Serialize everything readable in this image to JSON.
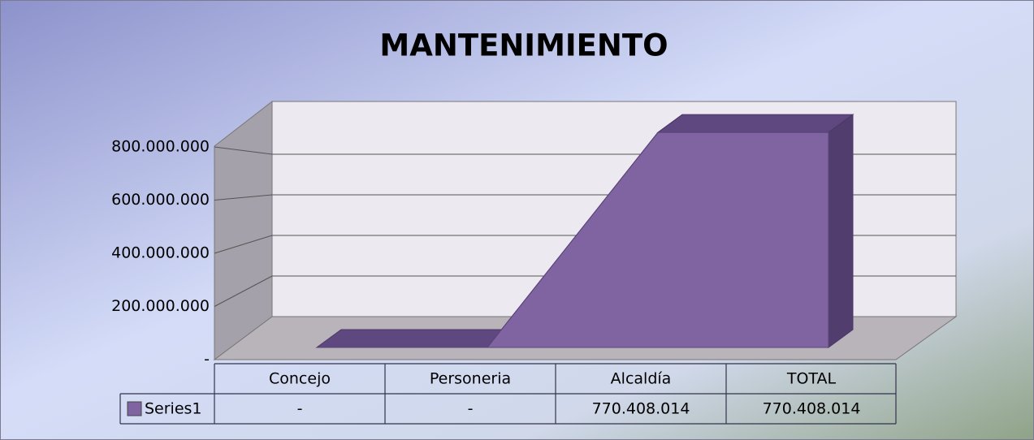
{
  "chart_data": {
    "type": "area3d",
    "title": "MANTENIMIENTO",
    "categories": [
      "Concejo",
      "Personeria",
      "Alcaldía",
      "TOTAL"
    ],
    "series": [
      {
        "name": "Series1",
        "color": "#8064a2",
        "values": [
          0,
          0,
          770408014,
          770408014
        ],
        "value_labels": [
          "-",
          "-",
          "770.408.014",
          "770.408.014"
        ]
      }
    ],
    "ylim": [
      0,
      800000000
    ],
    "yticks": [
      {
        "value": 0,
        "label": "-"
      },
      {
        "value": 200000000,
        "label": "200.000.000"
      },
      {
        "value": 400000000,
        "label": "400.000.000"
      },
      {
        "value": 600000000,
        "label": "600.000.000"
      },
      {
        "value": 800000000,
        "label": "800.000.000"
      }
    ],
    "grid": true,
    "legend": "table"
  }
}
